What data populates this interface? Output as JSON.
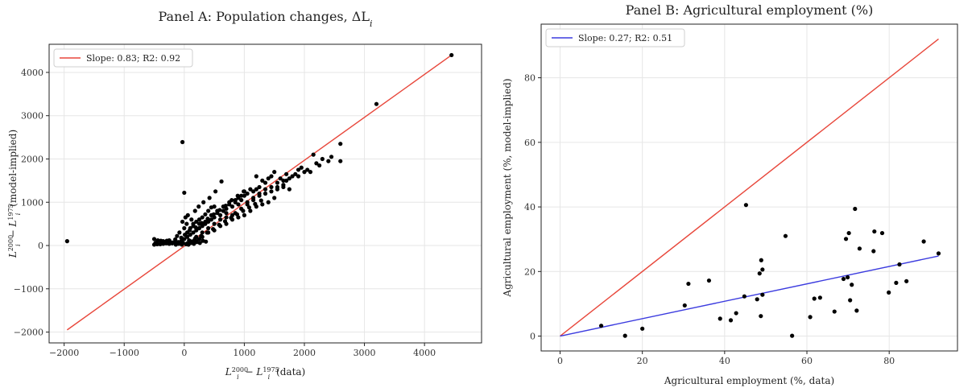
{
  "chart_data": [
    {
      "id": "A",
      "type": "scatter",
      "title": "Panel A: Population changes, ΔL",
      "title_subscript": "i",
      "xlabel": {
        "base": "L",
        "sub": "i",
        "sup1": "2000",
        "sep": " − ",
        "sup2": "1975",
        "suffix": " (data)"
      },
      "ylabel": {
        "base": "L",
        "sub": "i",
        "sup1": "2000",
        "sep": " − ",
        "sup2": "1975",
        "suffix": " (model-implied)"
      },
      "xlim": [
        -2250,
        4950
      ],
      "ylim": [
        -2250,
        4650
      ],
      "xticks": [
        -2000,
        -1000,
        0,
        1000,
        2000,
        3000,
        4000
      ],
      "yticks": [
        -2000,
        -1000,
        0,
        1000,
        2000,
        3000,
        4000
      ],
      "legend": {
        "label": "Slope: 0.83; R2: 0.92",
        "placement": "upper left"
      },
      "line": {
        "color": "#e8473b",
        "x": [
          -1950,
          4450
        ],
        "y": [
          -1950,
          4400
        ]
      },
      "points": [
        [
          -1950,
          100
        ],
        [
          -30,
          2390
        ],
        [
          0,
          1220
        ],
        [
          620,
          1480
        ],
        [
          4450,
          4400
        ],
        [
          3200,
          3270
        ],
        [
          2150,
          2100
        ],
        [
          2600,
          2350
        ],
        [
          2450,
          2050
        ],
        [
          2600,
          1950
        ],
        [
          2400,
          1950
        ],
        [
          2250,
          1850
        ],
        [
          2050,
          1750
        ],
        [
          2000,
          1700
        ],
        [
          1900,
          1600
        ],
        [
          1800,
          1600
        ],
        [
          1750,
          1550
        ],
        [
          1700,
          1500
        ],
        [
          1650,
          1400
        ],
        [
          1500,
          1700
        ],
        [
          1550,
          1350
        ],
        [
          1450,
          1600
        ],
        [
          1400,
          1550
        ],
        [
          1350,
          1450
        ],
        [
          1300,
          1500
        ],
        [
          1250,
          1350
        ],
        [
          1200,
          1300
        ],
        [
          1200,
          1600
        ],
        [
          1150,
          1250
        ],
        [
          1100,
          1300
        ],
        [
          1050,
          1200
        ],
        [
          1000,
          1250
        ],
        [
          1000,
          1150
        ],
        [
          950,
          1050
        ],
        [
          900,
          1100
        ],
        [
          900,
          950
        ],
        [
          850,
          1000
        ],
        [
          800,
          900
        ],
        [
          750,
          950
        ],
        [
          700,
          850
        ],
        [
          700,
          750
        ],
        [
          650,
          800
        ],
        [
          600,
          700
        ],
        [
          550,
          750
        ],
        [
          500,
          650
        ],
        [
          450,
          600
        ],
        [
          400,
          550
        ],
        [
          350,
          500
        ],
        [
          300,
          450
        ],
        [
          250,
          400
        ],
        [
          200,
          350
        ],
        [
          150,
          300
        ],
        [
          100,
          250
        ],
        [
          50,
          200
        ],
        [
          0,
          150
        ],
        [
          -50,
          100
        ],
        [
          -100,
          80
        ],
        [
          -150,
          60
        ],
        [
          -200,
          50
        ],
        [
          -250,
          40
        ],
        [
          -300,
          50
        ],
        [
          -350,
          40
        ],
        [
          -400,
          30
        ],
        [
          -450,
          30
        ],
        [
          -500,
          150
        ],
        [
          -500,
          20
        ],
        [
          -450,
          80
        ],
        [
          -350,
          100
        ],
        [
          -250,
          120
        ],
        [
          -150,
          140
        ],
        [
          -50,
          180
        ],
        [
          50,
          300
        ],
        [
          100,
          400
        ],
        [
          150,
          500
        ],
        [
          200,
          550
        ],
        [
          250,
          600
        ],
        [
          300,
          650
        ],
        [
          350,
          720
        ],
        [
          400,
          800
        ],
        [
          450,
          880
        ],
        [
          500,
          900
        ],
        [
          300,
          300
        ],
        [
          400,
          400
        ],
        [
          500,
          500
        ],
        [
          600,
          600
        ],
        [
          700,
          650
        ],
        [
          800,
          700
        ],
        [
          850,
          750
        ],
        [
          950,
          850
        ],
        [
          1050,
          950
        ],
        [
          1150,
          1050
        ],
        [
          1250,
          1150
        ],
        [
          1350,
          1200
        ],
        [
          1450,
          1250
        ],
        [
          1550,
          1300
        ],
        [
          1650,
          1350
        ],
        [
          1750,
          1300
        ],
        [
          100,
          100
        ],
        [
          200,
          200
        ],
        [
          250,
          150
        ],
        [
          150,
          100
        ],
        [
          50,
          50
        ],
        [
          -20,
          60
        ],
        [
          80,
          120
        ],
        [
          180,
          160
        ],
        [
          280,
          220
        ],
        [
          380,
          300
        ],
        [
          480,
          380
        ],
        [
          580,
          480
        ],
        [
          680,
          560
        ],
        [
          780,
          640
        ],
        [
          880,
          720
        ],
        [
          980,
          800
        ],
        [
          1080,
          880
        ],
        [
          1180,
          960
        ],
        [
          1280,
          1040
        ],
        [
          120,
          600
        ],
        [
          60,
          700
        ],
        [
          180,
          800
        ],
        [
          240,
          900
        ],
        [
          320,
          1000
        ],
        [
          420,
          1100
        ],
        [
          520,
          1250
        ],
        [
          -80,
          300
        ],
        [
          -120,
          220
        ],
        [
          0,
          400
        ],
        [
          40,
          500
        ],
        [
          -30,
          550
        ],
        [
          20,
          650
        ],
        [
          150,
          450
        ],
        [
          250,
          500
        ],
        [
          350,
          550
        ],
        [
          450,
          700
        ],
        [
          550,
          800
        ],
        [
          650,
          900
        ],
        [
          750,
          1000
        ],
        [
          850,
          1050
        ],
        [
          950,
          1150
        ],
        [
          1050,
          1000
        ],
        [
          1150,
          1100
        ],
        [
          1250,
          1200
        ],
        [
          1350,
          1300
        ],
        [
          1450,
          1350
        ],
        [
          1550,
          1450
        ],
        [
          1650,
          1500
        ],
        [
          1850,
          1650
        ],
        [
          1950,
          1800
        ],
        [
          2100,
          1700
        ],
        [
          2200,
          1900
        ],
        [
          2300,
          2000
        ],
        [
          1600,
          1550
        ],
        [
          1700,
          1650
        ],
        [
          1900,
          1750
        ],
        [
          200,
          100
        ],
        [
          300,
          200
        ],
        [
          400,
          300
        ],
        [
          500,
          350
        ],
        [
          600,
          450
        ],
        [
          700,
          500
        ],
        [
          800,
          600
        ],
        [
          900,
          650
        ],
        [
          1000,
          700
        ],
        [
          1100,
          800
        ],
        [
          1200,
          900
        ],
        [
          1300,
          950
        ],
        [
          1400,
          1000
        ],
        [
          1500,
          1100
        ],
        [
          30,
          30
        ],
        [
          70,
          20
        ],
        [
          110,
          60
        ],
        [
          160,
          40
        ],
        [
          210,
          80
        ],
        [
          260,
          60
        ],
        [
          310,
          110
        ],
        [
          360,
          90
        ],
        [
          -40,
          20
        ],
        [
          -90,
          40
        ],
        [
          -140,
          20
        ],
        [
          -190,
          70
        ],
        [
          -240,
          90
        ],
        [
          -290,
          110
        ],
        [
          -340,
          70
        ],
        [
          -390,
          110
        ],
        [
          -440,
          120
        ],
        [
          -480,
          60
        ],
        [
          10,
          250
        ],
        [
          90,
          350
        ],
        [
          190,
          420
        ],
        [
          290,
          520
        ],
        [
          390,
          620
        ],
        [
          490,
          720
        ],
        [
          590,
          820
        ],
        [
          690,
          920
        ],
        [
          790,
          1050
        ],
        [
          890,
          1150
        ],
        [
          990,
          1250
        ]
      ]
    },
    {
      "id": "B",
      "type": "scatter",
      "title": "Panel B: Agricultural employment (%)",
      "xlabel": "Agricultural employment (%, data)",
      "ylabel": "Agricultural employment (%, model-implied)",
      "xlim": [
        -4.6,
        96.6
      ],
      "ylim": [
        -4.6,
        96.6
      ],
      "xticks": [
        0,
        20,
        40,
        60,
        80
      ],
      "yticks": [
        0,
        20,
        40,
        60,
        80
      ],
      "legend": {
        "label": "Slope: 0.27; R2: 0.51",
        "placement": "upper left"
      },
      "identity_line": {
        "color": "#e8473b",
        "x": [
          0,
          92
        ],
        "y": [
          0,
          92
        ]
      },
      "fit_line": {
        "color": "#3b3bdf",
        "x": [
          0,
          92
        ],
        "y": [
          0,
          24.8
        ]
      },
      "points": [
        [
          10,
          3.2
        ],
        [
          15.8,
          0.1
        ],
        [
          20,
          2.3
        ],
        [
          30.3,
          9.5
        ],
        [
          31.2,
          16.2
        ],
        [
          36.2,
          17.2
        ],
        [
          38.9,
          5.4
        ],
        [
          41.5,
          4.9
        ],
        [
          42.8,
          7.1
        ],
        [
          44.8,
          12.3
        ],
        [
          45.2,
          40.6
        ],
        [
          47.9,
          11.4
        ],
        [
          48.5,
          19.4
        ],
        [
          48.8,
          6.2
        ],
        [
          48.9,
          23.5
        ],
        [
          49.2,
          20.6
        ],
        [
          49.2,
          12.8
        ],
        [
          54.8,
          31
        ],
        [
          56.4,
          0.1
        ],
        [
          60.8,
          5.9
        ],
        [
          61.8,
          11.6
        ],
        [
          63.2,
          11.9
        ],
        [
          66.7,
          7.6
        ],
        [
          68.9,
          17.7
        ],
        [
          69.5,
          30.1
        ],
        [
          69.9,
          18.2
        ],
        [
          70.2,
          31.9
        ],
        [
          70.5,
          11.1
        ],
        [
          70.9,
          15.9
        ],
        [
          71.7,
          39.4
        ],
        [
          72.1,
          7.9
        ],
        [
          72.8,
          27.1
        ],
        [
          76.2,
          26.3
        ],
        [
          76.4,
          32.4
        ],
        [
          78.3,
          31.9
        ],
        [
          79.9,
          13.5
        ],
        [
          81.7,
          16.5
        ],
        [
          82.5,
          22.2
        ],
        [
          84.2,
          17
        ],
        [
          88.4,
          29.3
        ],
        [
          92,
          25.6
        ]
      ]
    }
  ]
}
